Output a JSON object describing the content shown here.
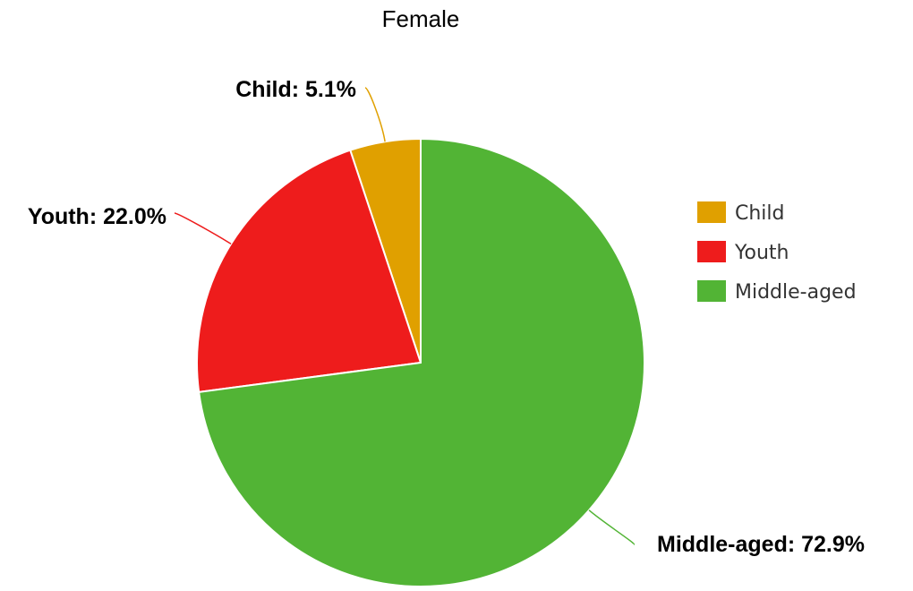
{
  "chart_data": {
    "type": "pie",
    "title": "Female",
    "start_angle_deg": 0,
    "direction": "counterclockwise",
    "label_format": "{name}: {pct}",
    "legend": {
      "position": "right",
      "entries": [
        "Child",
        "Youth",
        "Middle-aged"
      ]
    },
    "slices": [
      {
        "name": "Child",
        "value": 5.1,
        "label": "Child: 5.1%",
        "color": "#e0a000"
      },
      {
        "name": "Youth",
        "value": 22.0,
        "label": "Youth: 22.0%",
        "color": "#ee1c1c"
      },
      {
        "name": "Middle-aged",
        "value": 72.9,
        "label": "Middle-aged: 72.9%",
        "color": "#52b435"
      }
    ]
  }
}
